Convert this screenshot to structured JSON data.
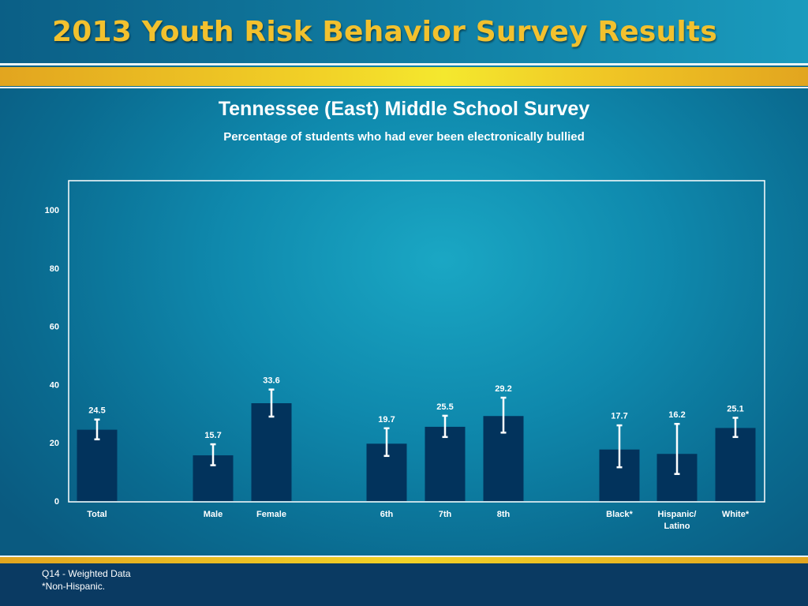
{
  "header": {
    "title": "2013 Youth Risk Behavior Survey Results"
  },
  "footer": {
    "note1": "Q14 - Weighted Data",
    "note2": "*Non-Hispanic."
  },
  "colors": {
    "bar": "#02335c",
    "gold": "#f2c12e",
    "text": "#ffffff"
  },
  "chart_data": {
    "type": "bar",
    "title": "Tennessee (East) Middle School Survey",
    "subtitle": "Percentage of students who had ever been electronically bullied",
    "xlabel": "",
    "ylabel": "",
    "ylim": [
      0,
      110
    ],
    "yticks": [
      0,
      20,
      40,
      60,
      80,
      100
    ],
    "grid": false,
    "categories": [
      {
        "label": "Total",
        "value": 24.5,
        "label_text": "24.5",
        "ci": [
          21.2,
          28.0
        ]
      },
      {
        "label": "Male",
        "value": 15.7,
        "label_text": "15.7",
        "ci": [
          12.3,
          19.5
        ]
      },
      {
        "label": "Female",
        "value": 33.6,
        "label_text": "33.6",
        "ci": [
          29.0,
          38.3
        ]
      },
      {
        "label": "6th",
        "value": 19.7,
        "label_text": "19.7",
        "ci": [
          15.5,
          25.0
        ]
      },
      {
        "label": "7th",
        "value": 25.5,
        "label_text": "25.5",
        "ci": [
          22.0,
          29.3
        ]
      },
      {
        "label": "8th",
        "value": 29.2,
        "label_text": "29.2",
        "ci": [
          23.5,
          35.5
        ]
      },
      {
        "label": "Black*",
        "value": 17.7,
        "label_text": "17.7",
        "ci": [
          11.6,
          26.0
        ]
      },
      {
        "label": "Hispanic/\nLatino",
        "value": 16.2,
        "label_text": "16.2",
        "ci": [
          9.3,
          26.5
        ]
      },
      {
        "label": "White*",
        "value": 25.1,
        "label_text": "25.1",
        "ci": [
          22.0,
          28.6
        ]
      }
    ]
  }
}
